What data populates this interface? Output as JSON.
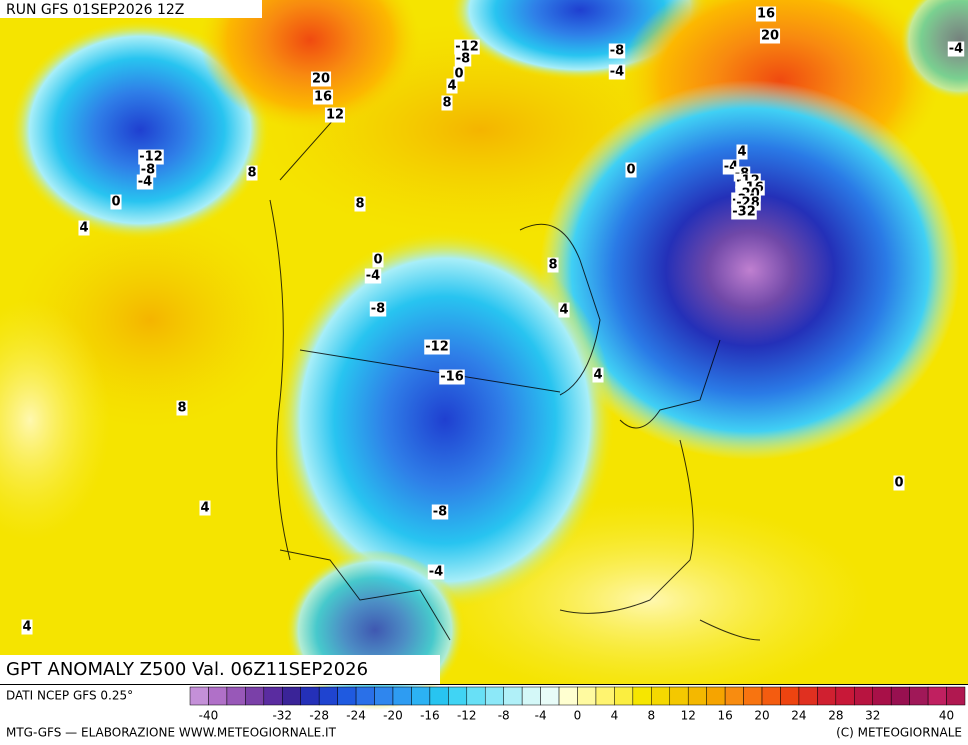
{
  "header": {
    "run": "RUN GFS 01SEP2026 12Z"
  },
  "map": {
    "title": "GPT ANOMALY Z500 Val. 06Z11SEP2026",
    "contour_labels": [
      "-12",
      "-8",
      "0",
      "4",
      "8",
      "-8",
      "-4",
      "16",
      "20",
      "-4",
      "20",
      "16",
      "12",
      "-12",
      "-8",
      "-4",
      "8",
      "0",
      "4",
      "8",
      "0",
      "-4",
      "-8",
      "8",
      "4",
      "-12",
      "-16",
      "4",
      "8",
      "0",
      "4",
      "-8",
      "-4",
      "4",
      "0",
      "4",
      "-4",
      "-8",
      "-12",
      "-16",
      "-20",
      "-24",
      "-28",
      "-32"
    ]
  },
  "legend": {
    "source": "DATI NCEP GFS 0.25°",
    "tick_labels": [
      "-40",
      "-32",
      "-28",
      "-24",
      "-20",
      "-16",
      "-12",
      "-8",
      "-4",
      "0",
      "4",
      "8",
      "12",
      "16",
      "20",
      "24",
      "28",
      "32",
      "40"
    ]
  },
  "footer": {
    "credit": "MTG-GFS — ELABORAZIONE WWW.METEOGIORNALE.IT",
    "copyright": "(C) METEOGIORNALE"
  }
}
